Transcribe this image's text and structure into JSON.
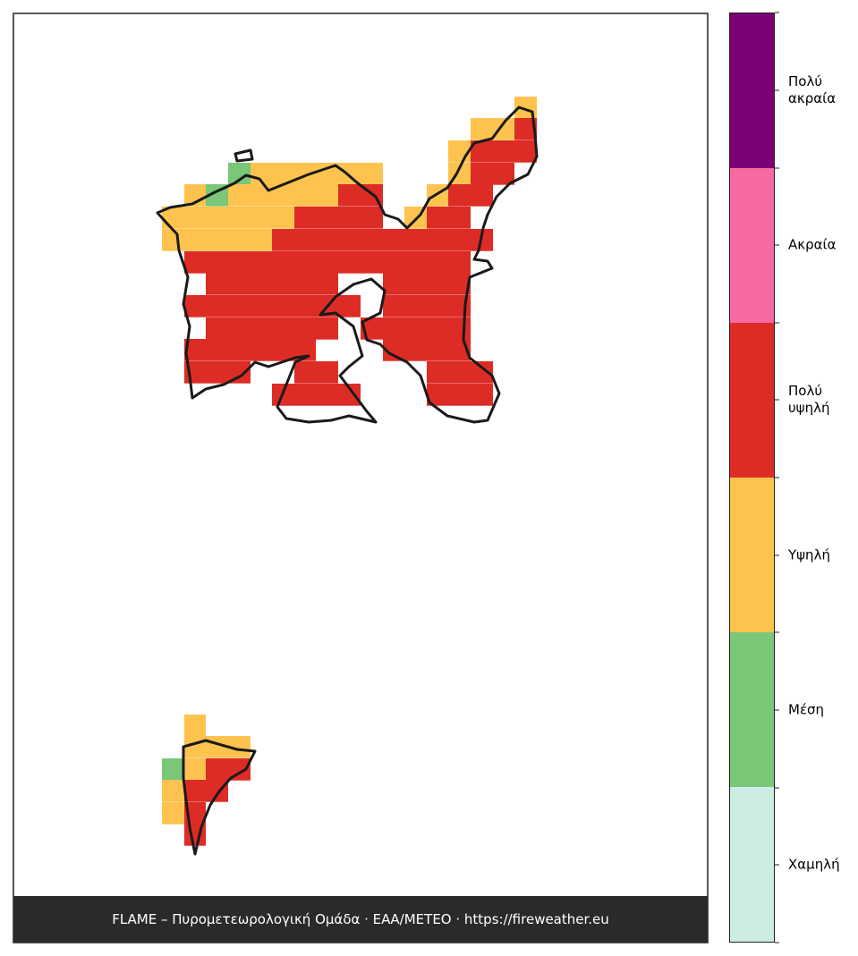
{
  "legend": {
    "levels": [
      {
        "label": "Πολύ ακραία",
        "color": "#7b0077"
      },
      {
        "label": "Ακραία",
        "color": "#f76aa1"
      },
      {
        "label": "Πολύ υψηλή",
        "color": "#dd2c25"
      },
      {
        "label": "Υψηλή",
        "color": "#fec34f"
      },
      {
        "label": "Μέση",
        "color": "#79c777"
      },
      {
        "label": "Χαμηλή",
        "color": "#cdece3"
      }
    ]
  },
  "footer": {
    "text": "FLAME – Πυρομετεωρολογική Ομάδα · ΕΑΑ/METEO · https://fireweather.eu"
  }
}
